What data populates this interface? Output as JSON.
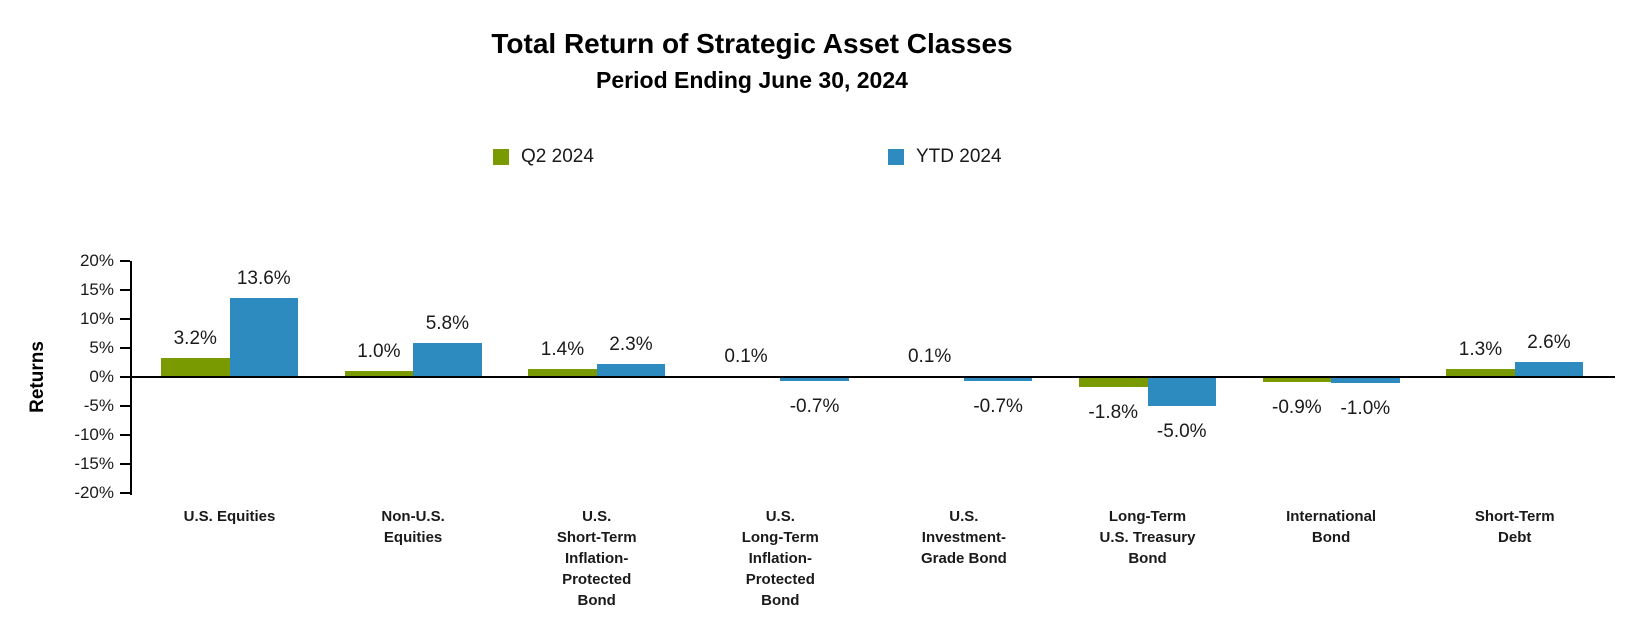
{
  "title": "Total Return of Strategic Asset Classes",
  "subtitle": "Period Ending June 30, 2024",
  "legend": {
    "items": [
      {
        "label": "Q2 2024",
        "color": "#7A9A01"
      },
      {
        "label": "YTD 2024",
        "color": "#2E8BC0"
      }
    ]
  },
  "chart_data": {
    "type": "bar",
    "title": "Total Return of Strategic Asset Classes",
    "subtitle": "Period Ending June 30, 2024",
    "xlabel": "",
    "ylabel": "Returns",
    "ylim": [
      -20,
      20
    ],
    "ytick_step": 5,
    "ytick_labels": [
      "20%",
      "15%",
      "10%",
      "5%",
      "0%",
      "-5%",
      "-10%",
      "-15%",
      "-20%"
    ],
    "grid": false,
    "legend_position": "top",
    "categories": [
      "U.S. Equities",
      "Non-U.S. Equities",
      "U.S. Short-Term Inflation-Protected Bond",
      "U.S. Long-Term Inflation-Protected Bond",
      "U.S. Investment-Grade Bond",
      "Long-Term U.S. Treasury Bond",
      "International Bond",
      "Short-Term Debt"
    ],
    "categories_lines": [
      [
        "U.S. Equities"
      ],
      [
        "Non-U.S.",
        "Equities"
      ],
      [
        "U.S.",
        "Short-Term",
        "Inflation-",
        "Protected",
        "Bond"
      ],
      [
        "U.S.",
        "Long-Term",
        "Inflation-",
        "Protected",
        "Bond"
      ],
      [
        "U.S.",
        "Investment-",
        "Grade Bond"
      ],
      [
        "Long-Term",
        "U.S. Treasury",
        "Bond"
      ],
      [
        "International",
        "Bond"
      ],
      [
        "Short-Term",
        "Debt"
      ]
    ],
    "series": [
      {
        "name": "Q2 2024",
        "color": "#7A9A01",
        "values": [
          3.2,
          1.0,
          1.4,
          0.1,
          0.1,
          -1.8,
          -0.9,
          1.3
        ],
        "data_labels": [
          "3.2%",
          "1.0%",
          "1.4%",
          "0.1%",
          "0.1%",
          "-1.8%",
          "-0.9%",
          "1.3%"
        ]
      },
      {
        "name": "YTD 2024",
        "color": "#2E8BC0",
        "values": [
          13.6,
          5.8,
          2.3,
          -0.7,
          -0.7,
          -5.0,
          -1.0,
          2.6
        ],
        "data_labels": [
          "13.6%",
          "5.8%",
          "2.3%",
          "-0.7%",
          "-0.7%",
          "-5.0%",
          "-1.0%",
          "2.6%"
        ]
      }
    ]
  }
}
